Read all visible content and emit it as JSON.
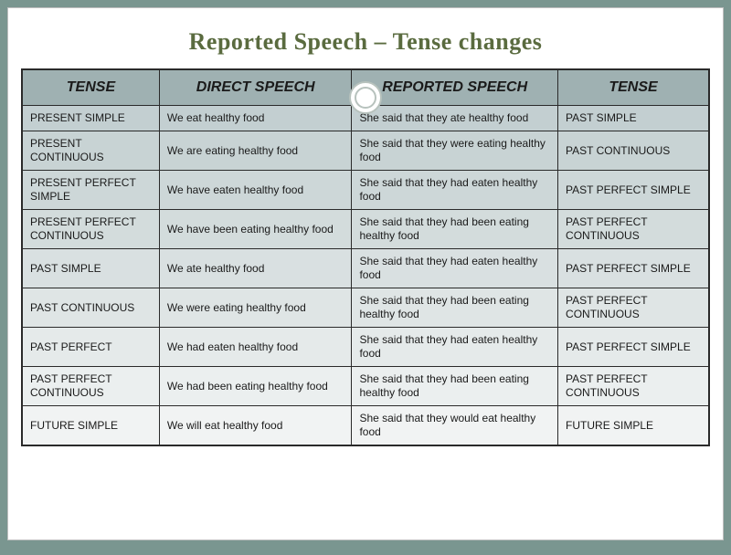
{
  "title": "Reported Speech – Tense changes",
  "headers": {
    "h1": "TENSE",
    "h2": "DIRECT SPEECH",
    "h3": "REPORTED SPEECH",
    "h4": "TENSE"
  },
  "rows": [
    {
      "tense_in": "PRESENT SIMPLE",
      "direct": "We eat healthy food",
      "reported": "She said that they ate healthy food",
      "tense_out": "PAST SIMPLE"
    },
    {
      "tense_in": "PRESENT CONTINUOUS",
      "direct": "We are eating healthy food",
      "reported": "She said that they were eating healthy food",
      "tense_out": "PAST CONTINUOUS"
    },
    {
      "tense_in": "PRESENT PERFECT SIMPLE",
      "direct": "We have eaten healthy food",
      "reported": "She said that they had eaten healthy food",
      "tense_out": "PAST PERFECT SIMPLE"
    },
    {
      "tense_in": "PRESENT PERFECT CONTINUOUS",
      "direct": "We have been eating healthy food",
      "reported": "She said that they had been eating  healthy food",
      "tense_out": "PAST PERFECT CONTINUOUS"
    },
    {
      "tense_in": "PAST SIMPLE",
      "direct": "We ate healthy food",
      "reported": "She said that they had eaten healthy food",
      "tense_out": "PAST PERFECT SIMPLE"
    },
    {
      "tense_in": "PAST CONTINUOUS",
      "direct": "We were eating healthy food",
      "reported": "She said that they had been eating healthy food",
      "tense_out": "PAST PERFECT CONTINUOUS"
    },
    {
      "tense_in": "PAST PERFECT",
      "direct": "We had eaten healthy food",
      "reported": "She said that they had eaten healthy food",
      "tense_out": "PAST PERFECT SIMPLE"
    },
    {
      "tense_in": "PAST PERFECT CONTINUOUS",
      "direct": "We had been eating healthy food",
      "reported": "She said that they had been eating  healthy food",
      "tense_out": "PAST PERFECT CONTINUOUS"
    },
    {
      "tense_in": "FUTURE SIMPLE",
      "direct": "We will eat healthy food",
      "reported": "She said that they would eat healthy food",
      "tense_out": "FUTURE SIMPLE"
    }
  ],
  "style": {
    "type": "table",
    "columns": 4,
    "row_count": 9,
    "title_color": "#5a6b3f",
    "title_fontsize": 26,
    "header_bg": "#9fb1b2",
    "header_fontsize": 16,
    "cell_fontsize": 12,
    "border_color": "#2a2a2a",
    "row_gradient_top": "#c3cfd1",
    "row_gradient_bottom": "#f1f3f3",
    "slide_bg": "#ffffff",
    "page_bg": "#7a9690",
    "col_widths_pct": [
      20,
      28,
      30,
      22
    ],
    "ornament_ring_color": "#b7c2bd"
  }
}
